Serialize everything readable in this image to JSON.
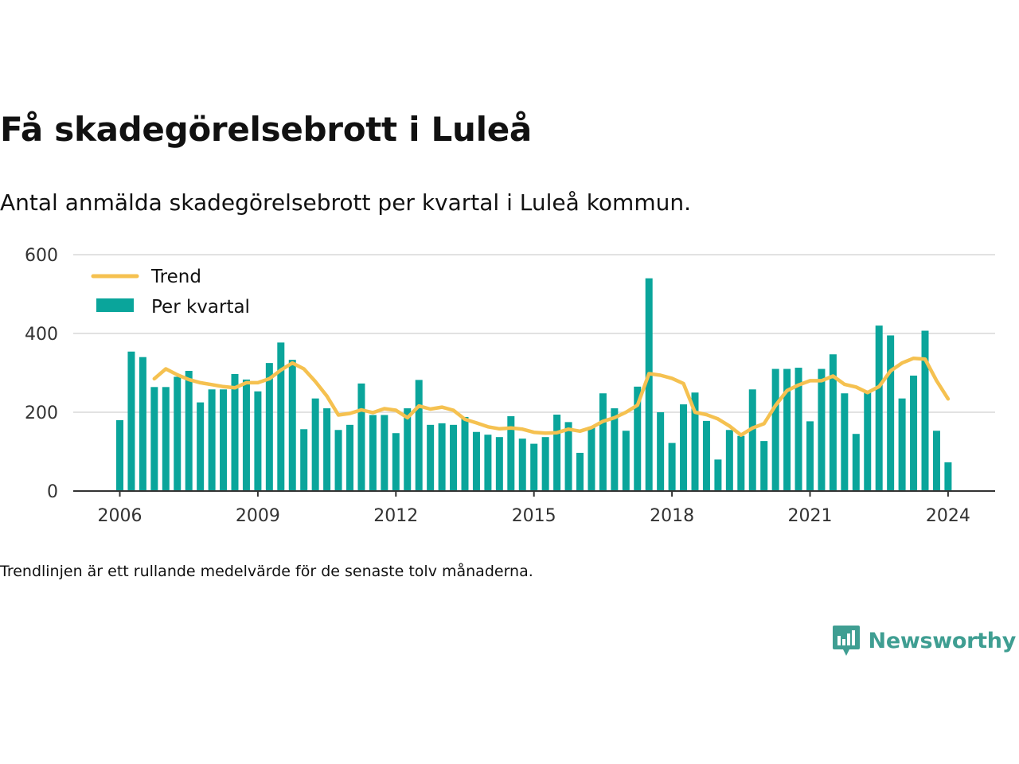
{
  "title": "Få skadegörelsebrott i Luleå",
  "subtitle": "Antal anmälda skadegörelsebrott per kvartal i Luleå kommun.",
  "footnote": "Trendlinjen är ett rullande medelvärde för de senaste tolv månaderna.",
  "brand": {
    "name": "Newsworthy",
    "icon": "newsworthy-logo-icon"
  },
  "colors": {
    "bars": "#0aa59b",
    "trend": "#f5c150",
    "grid": "#d9d9d9",
    "axis": "#333333",
    "brand": "#3f9e92"
  },
  "chart_data": {
    "type": "bar",
    "y_ticks": [
      0,
      200,
      400,
      600
    ],
    "x_ticks": [
      "2006",
      "2009",
      "2012",
      "2015",
      "2018",
      "2021",
      "2024"
    ],
    "ylim": [
      0,
      600
    ],
    "grid": true,
    "legend_position": "top-left",
    "legend": [
      {
        "label": "Trend",
        "type": "line"
      },
      {
        "label": "Per kvartal",
        "type": "bar"
      }
    ],
    "categories": [
      "2006 Q1",
      "2006 Q2",
      "2006 Q3",
      "2006 Q4",
      "2007 Q1",
      "2007 Q2",
      "2007 Q3",
      "2007 Q4",
      "2008 Q1",
      "2008 Q2",
      "2008 Q3",
      "2008 Q4",
      "2009 Q1",
      "2009 Q2",
      "2009 Q3",
      "2009 Q4",
      "2010 Q1",
      "2010 Q2",
      "2010 Q3",
      "2010 Q4",
      "2011 Q1",
      "2011 Q2",
      "2011 Q3",
      "2011 Q4",
      "2012 Q1",
      "2012 Q2",
      "2012 Q3",
      "2012 Q4",
      "2013 Q1",
      "2013 Q2",
      "2013 Q3",
      "2013 Q4",
      "2014 Q1",
      "2014 Q2",
      "2014 Q3",
      "2014 Q4",
      "2015 Q1",
      "2015 Q2",
      "2015 Q3",
      "2015 Q4",
      "2016 Q1",
      "2016 Q2",
      "2016 Q3",
      "2016 Q4",
      "2017 Q1",
      "2017 Q2",
      "2017 Q3",
      "2017 Q4",
      "2018 Q1",
      "2018 Q2",
      "2018 Q3",
      "2018 Q4",
      "2019 Q1",
      "2019 Q2",
      "2019 Q3",
      "2019 Q4",
      "2020 Q1",
      "2020 Q2",
      "2020 Q3",
      "2020 Q4",
      "2021 Q1",
      "2021 Q2",
      "2021 Q3",
      "2021 Q4",
      "2022 Q1",
      "2022 Q2",
      "2022 Q3",
      "2022 Q4",
      "2023 Q1",
      "2023 Q2",
      "2023 Q3",
      "2023 Q4",
      "2024 Q1"
    ],
    "series": [
      {
        "name": "Per kvartal",
        "type": "bar",
        "values": [
          180,
          354,
          340,
          264,
          264,
          290,
          305,
          225,
          258,
          258,
          297,
          283,
          253,
          325,
          377,
          333,
          157,
          235,
          210,
          155,
          168,
          273,
          193,
          193,
          147,
          210,
          282,
          168,
          172,
          168,
          188,
          150,
          143,
          137,
          190,
          133,
          120,
          137,
          194,
          175,
          97,
          163,
          248,
          210,
          153,
          265,
          540,
          200,
          122,
          220,
          250,
          178,
          80,
          155,
          140,
          258,
          127,
          310,
          310,
          313,
          177,
          310,
          347,
          248,
          145,
          250,
          420,
          395,
          235,
          293,
          407,
          153,
          73
        ]
      },
      {
        "name": "Trend",
        "type": "line",
        "values": [
          null,
          null,
          null,
          285,
          310,
          295,
          283,
          275,
          270,
          265,
          262,
          275,
          275,
          285,
          307,
          325,
          310,
          278,
          241,
          193,
          197,
          206,
          199,
          209,
          205,
          186,
          216,
          208,
          213,
          205,
          182,
          173,
          163,
          158,
          160,
          157,
          149,
          147,
          148,
          157,
          152,
          161,
          177,
          186,
          200,
          218,
          298,
          294,
          286,
          273,
          200,
          194,
          183,
          165,
          142,
          160,
          171,
          217,
          255,
          269,
          280,
          280,
          292,
          271,
          264,
          250,
          265,
          305,
          325,
          337,
          335,
          280,
          234
        ]
      }
    ]
  }
}
